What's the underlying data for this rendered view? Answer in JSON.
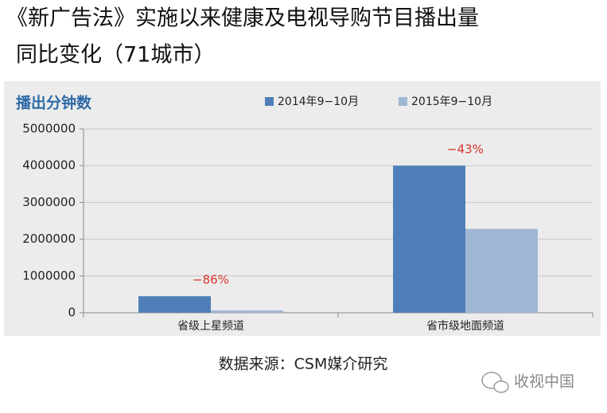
{
  "chart_data": {
    "type": "bar",
    "title": "《新广告法》实施以来健康及电视导购节目播出量",
    "title_line2": "同比变化（71城市）",
    "y_label": "播出分钟数",
    "categories": [
      "省级上星频道",
      "省市级地面频道"
    ],
    "series": [
      {
        "name": "2014年9−10月",
        "color": "#4f7fb8",
        "values": [
          450000,
          4000000
        ]
      },
      {
        "name": "2015年9−10月",
        "color": "#9fb6d4",
        "values": [
          63000,
          2280000
        ]
      }
    ],
    "annotations": [
      "−86%",
      "−43%"
    ],
    "ylim": [
      0,
      5000000
    ],
    "yticks": [
      0,
      1000000,
      2000000,
      3000000,
      4000000,
      5000000
    ],
    "grid": true,
    "source": "数据来源：CSM媒介研究",
    "watermark": "收视中国"
  }
}
